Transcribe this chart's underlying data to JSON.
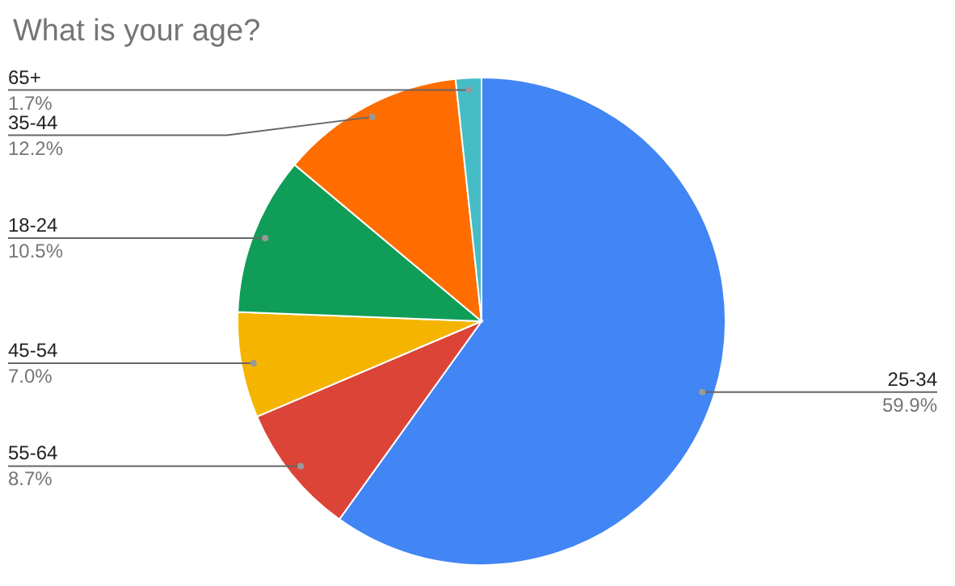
{
  "chart_data": {
    "type": "pie",
    "title": "What is your age?",
    "categories": [
      "25-34",
      "55-64",
      "45-54",
      "18-24",
      "35-44",
      "65+"
    ],
    "values": [
      59.9,
      8.7,
      7.0,
      10.5,
      12.2,
      1.7
    ],
    "value_labels": [
      "59.9%",
      "8.7%",
      "7.0%",
      "10.5%",
      "12.2%",
      "1.7%"
    ],
    "colors": [
      "#4285f4",
      "#db4437",
      "#f4b400",
      "#0f9d58",
      "#ff6d00",
      "#46bdc6"
    ],
    "legend": false
  }
}
